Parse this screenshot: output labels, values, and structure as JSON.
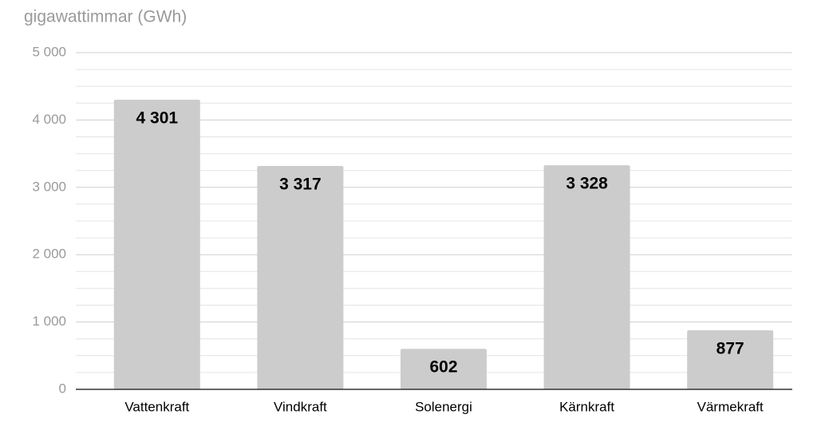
{
  "chart_data": {
    "type": "bar",
    "y_axis_label": "gigawattimmar (GWh)",
    "categories": [
      "Vattenkraft",
      "Vindkraft",
      "Solenergi",
      "Kärnkraft",
      "Värmekraft"
    ],
    "values": [
      4301,
      3317,
      602,
      3328,
      877
    ],
    "value_labels": [
      "4 301",
      "3 317",
      "602",
      "3 328",
      "877"
    ],
    "color": "#cccccc",
    "ylim": [
      0,
      5000
    ],
    "yticks": [
      0,
      {
        "value": 1000,
        "label": "1 000"
      },
      {
        "value": 2000,
        "label": "2 000"
      },
      {
        "value": 3000,
        "label": "3 000"
      },
      {
        "value": 4000,
        "label": "4 000"
      },
      {
        "value": 5000,
        "label": "5 000"
      }
    ],
    "minor_yticks": [
      250,
      500,
      750,
      1250,
      1500,
      1750,
      2250,
      2500,
      2750,
      3250,
      3500,
      3750,
      4250,
      4500,
      4750
    ],
    "grid": true
  }
}
